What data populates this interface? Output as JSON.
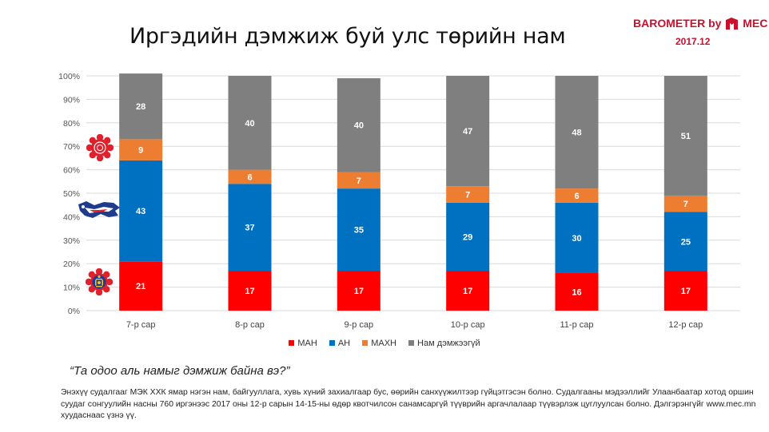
{
  "title": "Иргэдийн дэмжиж буй улс төрийн нам",
  "brand": {
    "text_before": "BAROMETER by",
    "text_after": "MEC",
    "date": "2017.12"
  },
  "question": "“Та одоо аль намыг дэмжиж байна вэ?”",
  "footnote": "Энэхүү судалгааг МЭК ХХК ямар нэгэн нам, байгууллага, хувь хүний захиалгаар бус, өөрийн санхүүжилтээр гүйцэтгэсэн болно. Судалгааны мэдээллийг Улаанбаатар хотод оршин суудаг сонгуулийн насны 760 иргэнээс 2017 оны 12-р сарын 14-15-ны өдөр квотчилсон санамсаргүй түүврийн аргачлалаар түүвэрлэж цуглуулсан болно. Дэлгэрэнгүйг www.mec.mn  хуудаснаас үзнэ үү.",
  "icons": [
    "rose-emblem-icon",
    "party-flag-icon",
    "soyombo-emblem-icon"
  ],
  "chart_data": {
    "type": "bar",
    "stacked": true,
    "categories": [
      "7-р сар",
      "8-р сар",
      "9-р сар",
      "10-р сар",
      "11-р сар",
      "12-р сар"
    ],
    "series": [
      {
        "name": "МАН",
        "color": "#ff0000",
        "values": [
          21,
          17,
          17,
          17,
          16,
          17
        ]
      },
      {
        "name": "АН",
        "color": "#0070c0",
        "values": [
          43,
          37,
          35,
          29,
          30,
          25
        ]
      },
      {
        "name": "МАХН",
        "color": "#ed7d31",
        "values": [
          9,
          6,
          7,
          7,
          6,
          7
        ]
      },
      {
        "name": "Нам дэмжээгүй",
        "color": "#7f7f7f",
        "values": [
          28,
          40,
          40,
          47,
          48,
          51
        ]
      }
    ],
    "y_ticks": [
      "0%",
      "10%",
      "20%",
      "30%",
      "40%",
      "50%",
      "60%",
      "70%",
      "80%",
      "90%",
      "100%"
    ],
    "ylim": [
      0,
      100
    ],
    "grid": true,
    "legend_position": "bottom"
  }
}
